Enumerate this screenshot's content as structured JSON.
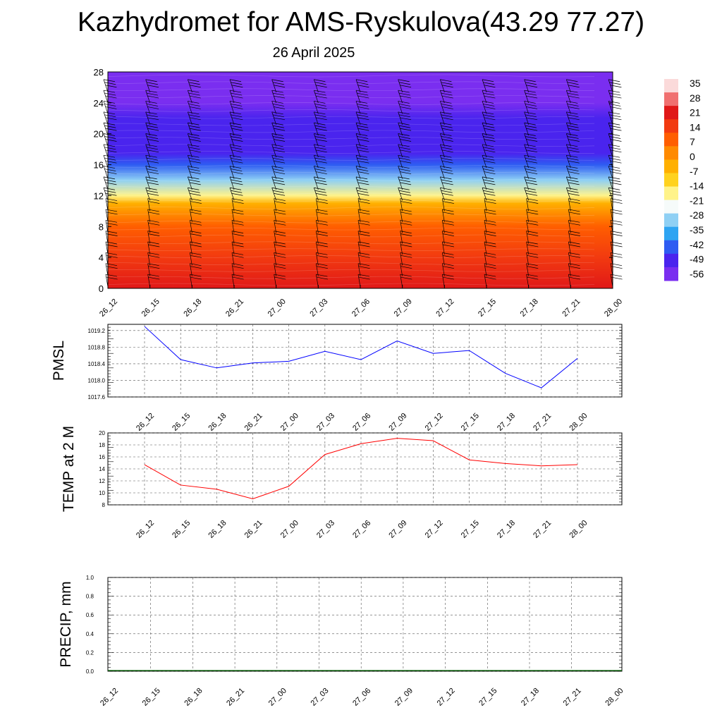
{
  "header": {
    "title": "Kazhydromet for AMS-Ryskulova(43.29 77.27)",
    "date": "26 April 2025"
  },
  "time_labels": [
    "26_12",
    "26_15",
    "26_18",
    "26_21",
    "27_00",
    "27_03",
    "27_06",
    "27_09",
    "27_12",
    "27_15",
    "27_18",
    "27_21",
    "28_00"
  ],
  "chart_data": [
    {
      "type": "heatmap",
      "title": "",
      "xlabel": "",
      "ylabel": "",
      "x": [
        "26_12",
        "26_15",
        "26_18",
        "26_21",
        "27_00",
        "27_03",
        "27_06",
        "27_09",
        "27_12",
        "27_15",
        "27_18",
        "27_21",
        "28_00"
      ],
      "y_ticks": [
        0,
        4,
        8,
        12,
        16,
        20,
        24,
        28
      ],
      "ylim": [
        0,
        28
      ],
      "colorbar": {
        "labels": [
          "35",
          "28",
          "21",
          "14",
          "7",
          "0",
          "-7",
          "-14",
          "-21",
          "-28",
          "-35",
          "-42",
          "-49",
          "-56"
        ],
        "range": [
          -59,
          38
        ],
        "colors": [
          "#7a2ef0",
          "#4a24ee",
          "#2e5cf2",
          "#2ea4f2",
          "#8fd0f4",
          "#f6fbfa",
          "#fff38a",
          "#ffd21e",
          "#ffb000",
          "#ff8a00",
          "#ff5e00",
          "#f23a10",
          "#e01818",
          "#f07070",
          "#fbdada"
        ]
      },
      "profile": [
        {
          "level": 0,
          "value": 24
        },
        {
          "level": 4,
          "value": 17
        },
        {
          "level": 8,
          "value": 8
        },
        {
          "level": 11,
          "value": -1
        },
        {
          "level": 12,
          "value": -17
        },
        {
          "level": 14,
          "value": -33
        },
        {
          "level": 16,
          "value": -45
        },
        {
          "level": 17.5,
          "value": -55
        },
        {
          "level": 22,
          "value": -52
        },
        {
          "level": 24,
          "value": -58
        },
        {
          "level": 28,
          "value": -59
        }
      ],
      "wind_barbs": true
    },
    {
      "type": "line",
      "ylabel": "PMSL",
      "x": [
        "26_12",
        "26_15",
        "26_18",
        "26_21",
        "27_00",
        "27_03",
        "27_06",
        "27_09",
        "27_12",
        "27_15",
        "27_18",
        "27_21",
        "28_00"
      ],
      "series": [
        {
          "values": [
            1019.3,
            1018.5,
            1018.3,
            1018.42,
            1018.46,
            1018.7,
            1018.5,
            1018.95,
            1018.65,
            1018.72,
            1018.17,
            1017.82,
            1018.53
          ]
        }
      ],
      "ylim": [
        1017.6,
        1019.35
      ],
      "yticks": [
        "1017.6",
        "1018.0",
        "1018.4",
        "1018.8",
        "1019.2"
      ],
      "color": "#0000ff"
    },
    {
      "type": "line",
      "ylabel": "TEMP at 2 M",
      "x": [
        "26_12",
        "26_15",
        "26_18",
        "26_21",
        "27_00",
        "27_03",
        "27_06",
        "27_09",
        "27_12",
        "27_15",
        "27_18",
        "27_21",
        "28_00"
      ],
      "series": [
        {
          "values": [
            14.7,
            11.3,
            10.6,
            9.0,
            11.1,
            16.4,
            18.2,
            19.1,
            18.7,
            15.5,
            14.9,
            14.5,
            14.7
          ]
        }
      ],
      "ylim": [
        8,
        20
      ],
      "yticks": [
        "8",
        "10",
        "12",
        "14",
        "16",
        "18",
        "20"
      ],
      "color": "#ff0000"
    },
    {
      "type": "line",
      "ylabel": "PRECIP, mm",
      "x": [
        "26_12",
        "26_15",
        "26_18",
        "26_21",
        "27_00",
        "27_03",
        "27_06",
        "27_09",
        "27_12",
        "27_15",
        "27_18",
        "27_21",
        "28_00"
      ],
      "series": [
        {
          "values": [
            0,
            0,
            0,
            0,
            0,
            0,
            0,
            0,
            0,
            0,
            0,
            0,
            0
          ]
        }
      ],
      "ylim": [
        0,
        1
      ],
      "yticks": [
        "0.0",
        "0.2",
        "0.4",
        "0.6",
        "0.8",
        "1.0"
      ],
      "color": "#006400"
    }
  ]
}
